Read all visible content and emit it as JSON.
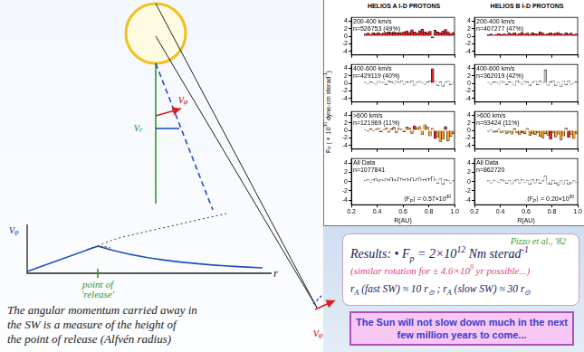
{
  "chart_panel": {
    "column_titles": [
      "HELIOS A I-D PROTONS",
      "HELIOS B I-D PROTONS"
    ],
    "ylabel": [
      "F",
      {
        "sub": "P"
      },
      " (× 10",
      {
        "sup": "30"
      },
      " dyne-cm sterad",
      {
        "sup": "-1"
      },
      ")"
    ]
  },
  "chart_data": [
    {
      "type": "bar",
      "title": "200-400 km/s",
      "subtitle": "n=526753 (49%)",
      "color": "#d8232a",
      "grid": false,
      "tick_labels": "y",
      "bins": [
        0.3,
        0.32,
        0.34,
        0.36,
        0.38,
        0.4,
        0.42,
        0.44,
        0.46,
        0.48,
        0.5,
        0.52,
        0.54,
        0.56,
        0.58,
        0.6,
        0.62,
        0.64,
        0.66,
        0.68,
        0.7,
        0.72,
        0.74,
        0.76,
        0.78,
        0.8,
        0.82,
        0.84,
        0.86,
        0.88,
        0.9,
        0.92,
        0.94,
        0.96,
        0.98,
        1.0
      ],
      "values": [
        0.6,
        0.8,
        0.5,
        0.9,
        0.7,
        1.0,
        0.6,
        0.8,
        1.0,
        1.1,
        1.0,
        1.2,
        0.9,
        0.9,
        1.0,
        1.2,
        1.4,
        1.0,
        1.7,
        1.1,
        0.8,
        1.5,
        1.9,
        1.2,
        1.0,
        1.3,
        -0.4,
        1.6,
        1.1,
        0.9,
        1.4,
        1.8,
        1.2,
        0.7,
        1.0
      ],
      "xlim": [
        0.2,
        1.0
      ],
      "xticks": [
        0.2,
        0.4,
        0.6,
        0.8,
        {
          "value": 1.0,
          "label": "1.0"
        }
      ],
      "ylim": [
        -5,
        5
      ],
      "yticks": [
        -4,
        -2,
        0,
        2,
        4
      ]
    },
    {
      "type": "bar",
      "title": "400-600 km/s",
      "subtitle": "n=429119 (40%)",
      "grid": false,
      "tick_labels": "y",
      "colors": [
        "#ffffff",
        "#ffffff",
        "#ffffff",
        "#ffffff",
        "#ffffff",
        "#ffffff",
        "#ffffff",
        "#ffffff",
        "#ffffff",
        "#ffffff",
        "#ffffff",
        "#ffffff",
        "#ffffff",
        "#ffffff",
        "#ffffff",
        "#ffffff",
        "#ffffff",
        "#ffffff",
        "#ffffff",
        "#ffffff",
        "#ffffff",
        "#ffffff",
        "#ffffff",
        "#ffffff",
        "#ffffff",
        "#ffffff",
        "#d8232a",
        "#ffffff",
        "#ffffff",
        "#ffffff",
        "#ffffff",
        "#ffffff",
        "#ffffff",
        "#ffffff",
        "#ffffff"
      ],
      "bins": [
        0.3,
        0.32,
        0.34,
        0.36,
        0.38,
        0.4,
        0.42,
        0.44,
        0.46,
        0.48,
        0.5,
        0.52,
        0.54,
        0.56,
        0.58,
        0.6,
        0.62,
        0.64,
        0.66,
        0.68,
        0.7,
        0.72,
        0.74,
        0.76,
        0.78,
        0.8,
        0.82,
        0.84,
        0.86,
        0.88,
        0.9,
        0.92,
        0.94,
        0.96,
        0.98,
        1.0
      ],
      "values": [
        0.3,
        -0.2,
        0.4,
        0.2,
        -0.3,
        0.5,
        0.2,
        0.3,
        -0.4,
        0.6,
        0.4,
        -0.2,
        0.5,
        0.3,
        0.7,
        -0.3,
        0.4,
        0.2,
        0.6,
        -0.5,
        0.3,
        0.5,
        0.2,
        -0.3,
        0.4,
        0.6,
        3.9,
        0.5,
        -0.6,
        0.4,
        -0.8,
        0.3,
        0.5,
        -0.4,
        0.2
      ],
      "xlim": [
        0.2,
        1.0
      ],
      "xticks": [
        0.2,
        0.4,
        0.6,
        0.8,
        {
          "value": 1.0,
          "label": "1.0"
        }
      ],
      "ylim": [
        -5,
        5
      ],
      "yticks": [
        -4,
        -2,
        0,
        2,
        4
      ]
    },
    {
      "type": "bar",
      "title": ">600 km/s",
      "subtitle": "n=121969 (11%)",
      "grid": false,
      "tick_labels": "y",
      "colors": [
        "#f2a23a",
        "#f2a23a",
        "#f2a23a",
        "#f2a23a",
        "#f2a23a",
        "#f2a23a",
        "#f2a23a",
        "#f2a23a",
        "#f2a23a",
        "#f2a23a",
        "#f2a23a",
        "#f2a23a",
        "#f2a23a",
        "#f2a23a",
        "#f2a23a",
        "#f2a23a",
        "#f2a23a",
        "#f2a23a",
        "#f2a23a",
        "#d8232a",
        "#f2a23a",
        "#f2a23a",
        "#f2a23a",
        "#f2a23a",
        "#f2a23a",
        "#f2a23a",
        "#f2a23a",
        "#d8232a",
        "#f2a23a",
        "#f2a23a",
        "#f2a23a",
        "#d8232a",
        "#f2a23a",
        "#f2a23a",
        "#f2a23a"
      ],
      "bins": [
        0.3,
        0.32,
        0.34,
        0.36,
        0.38,
        0.4,
        0.42,
        0.44,
        0.46,
        0.48,
        0.5,
        0.52,
        0.54,
        0.56,
        0.58,
        0.6,
        0.62,
        0.64,
        0.66,
        0.68,
        0.7,
        0.72,
        0.74,
        0.76,
        0.78,
        0.8,
        0.82,
        0.84,
        0.86,
        0.88,
        0.9,
        0.92,
        0.94,
        0.96,
        0.98,
        1.0
      ],
      "values": [
        0.2,
        -0.3,
        0.4,
        -0.2,
        0.3,
        0.5,
        -0.4,
        0.2,
        0.6,
        -0.5,
        0.4,
        0.8,
        -0.6,
        0.5,
        0.3,
        -0.4,
        0.9,
        0.6,
        -0.8,
        1.2,
        0.7,
        1.0,
        -1.2,
        1.5,
        0.8,
        -1.5,
        0.5,
        -2.2,
        -1.8,
        -3.0,
        -2.4,
        1.0,
        -2.8,
        -1.6,
        -0.9
      ],
      "xlim": [
        0.2,
        1.0
      ],
      "xticks": [
        0.2,
        0.4,
        0.6,
        0.8,
        {
          "value": 1.0,
          "label": "1.0"
        }
      ],
      "ylim": [
        -5,
        5
      ],
      "yticks": [
        -4,
        -2,
        0,
        2,
        4
      ]
    },
    {
      "type": "bar",
      "title": "All Data",
      "subtitle": "n=1077841",
      "color": "#ffffff",
      "grid": false,
      "annotations": [
        [
          "⟨F",
          {
            "sub": "P"
          },
          "⟩ = 0.57×10",
          {
            "sup": "30"
          }
        ]
      ],
      "xlabel": "R(AU)",
      "bins": [
        0.3,
        0.32,
        0.34,
        0.36,
        0.38,
        0.4,
        0.42,
        0.44,
        0.46,
        0.48,
        0.5,
        0.52,
        0.54,
        0.56,
        0.58,
        0.6,
        0.62,
        0.64,
        0.66,
        0.68,
        0.7,
        0.72,
        0.74,
        0.76,
        0.78,
        0.8,
        0.82,
        0.84,
        0.86,
        0.88,
        0.9,
        0.92,
        0.94,
        0.96,
        0.98,
        1.0
      ],
      "values": [
        0.3,
        0.5,
        -0.2,
        0.4,
        0.6,
        0.2,
        0.5,
        0.3,
        0.7,
        0.4,
        0.8,
        0.5,
        0.3,
        0.9,
        0.6,
        0.4,
        0.7,
        0.5,
        0.8,
        0.3,
        0.6,
        0.9,
        0.5,
        0.4,
        0.7,
        0.6,
        1.1,
        0.5,
        -0.4,
        0.6,
        -0.6,
        0.4,
        0.3,
        -0.3,
        0.2
      ],
      "xlim": [
        0.2,
        1.0
      ],
      "xticks": [
        0.2,
        0.4,
        0.6,
        0.8,
        {
          "value": 1.0,
          "label": "1.0"
        }
      ],
      "ylim": [
        -5,
        5
      ],
      "yticks": [
        -4,
        -2,
        0,
        2,
        4
      ]
    },
    {
      "type": "bar",
      "title": "200-400 km/s",
      "subtitle": "n=407277 (47%)",
      "color": "#d8232a",
      "grid": false,
      "tick_labels": "y",
      "bins": [
        0.3,
        0.32,
        0.34,
        0.36,
        0.38,
        0.4,
        0.42,
        0.44,
        0.46,
        0.48,
        0.5,
        0.52,
        0.54,
        0.56,
        0.58,
        0.6,
        0.62,
        0.64,
        0.66,
        0.68,
        0.7,
        0.72,
        0.74,
        0.76,
        0.78,
        0.8,
        0.82,
        0.84,
        0.86,
        0.88,
        0.9,
        0.92,
        0.94,
        0.96,
        0.98,
        1.0
      ],
      "values": [
        0.4,
        0.6,
        0.3,
        0.5,
        0.7,
        0.4,
        0.6,
        0.5,
        0.8,
        0.6,
        0.9,
        0.5,
        0.7,
        1.0,
        0.6,
        0.8,
        0.5,
        0.9,
        0.7,
        0.6,
        1.1,
        0.8,
        0.5,
        0.7,
        0.9,
        0.6,
        0.8,
        1.0,
        0.7,
        0.5,
        0.9,
        0.6,
        0.8,
        0.4,
        0.6
      ],
      "xlim": [
        0.2,
        1.0
      ],
      "xticks": [
        0.2,
        0.4,
        0.6,
        0.8,
        {
          "value": 1.0,
          "label": "1.0"
        }
      ],
      "ylim": [
        -5,
        5
      ],
      "yticks": [
        -4,
        -2,
        0,
        2,
        4
      ]
    },
    {
      "type": "bar",
      "title": "400-600 km/s",
      "subtitle": "n=362019 (42%)",
      "grid": false,
      "tick_labels": "y",
      "colors": [
        "#ffffff",
        "#ffffff",
        "#ffffff",
        "#ffffff",
        "#ffffff",
        "#ffffff",
        "#ffffff",
        "#ffffff",
        "#ffffff",
        "#ffffff",
        "#ffffff",
        "#ffffff",
        "#ffffff",
        "#ffffff",
        "#ffffff",
        "#ffffff",
        "#ffffff",
        "#ffffff",
        "#ffffff",
        "#ffffff",
        "#ffffff",
        "#ffffff",
        "#bdbdbd",
        "#ffffff",
        "#ffffff",
        "#ffffff",
        "#ffffff",
        "#ffffff",
        "#ffffff",
        "#ffffff",
        "#ffffff",
        "#ffffff",
        "#ffffff",
        "#ffffff",
        "#ffffff"
      ],
      "bins": [
        0.3,
        0.32,
        0.34,
        0.36,
        0.38,
        0.4,
        0.42,
        0.44,
        0.46,
        0.48,
        0.5,
        0.52,
        0.54,
        0.56,
        0.58,
        0.6,
        0.62,
        0.64,
        0.66,
        0.68,
        0.7,
        0.72,
        0.74,
        0.76,
        0.78,
        0.8,
        0.82,
        0.84,
        0.86,
        0.88,
        0.9,
        0.92,
        0.94,
        0.96,
        0.98,
        1.0
      ],
      "values": [
        0.2,
        -0.3,
        0.4,
        0.3,
        -0.2,
        0.5,
        0.3,
        -0.4,
        0.4,
        0.2,
        -0.5,
        0.6,
        0.3,
        -0.3,
        0.5,
        0.4,
        -0.6,
        0.3,
        0.5,
        -0.4,
        0.6,
        0.2,
        3.5,
        -0.5,
        0.4,
        0.7,
        -0.6,
        0.3,
        -0.8,
        0.5,
        -0.4,
        0.6,
        -0.3,
        0.2,
        0.4
      ],
      "xlim": [
        0.2,
        1.0
      ],
      "xticks": [
        0.2,
        0.4,
        0.6,
        0.8,
        {
          "value": 1.0,
          "label": "1.0"
        }
      ],
      "ylim": [
        -5,
        5
      ],
      "yticks": [
        -4,
        -2,
        0,
        2,
        4
      ]
    },
    {
      "type": "bar",
      "title": ">600 km/s",
      "subtitle": "n=93424 (11%)",
      "grid": false,
      "tick_labels": "y",
      "colors": [
        "#f2a23a",
        "#f2a23a",
        "#f2a23a",
        "#f2a23a",
        "#f2a23a",
        "#f2a23a",
        "#f2a23a",
        "#f2a23a",
        "#f2a23a",
        "#f2a23a",
        "#f2a23a",
        "#f2a23a",
        "#f2a23a",
        "#d8232a",
        "#f2a23a",
        "#f2a23a",
        "#f2a23a",
        "#f2a23a",
        "#f2a23a",
        "#f2a23a",
        "#f2a23a",
        "#f2a23a",
        "#f2a23a",
        "#f2a23a",
        "#d8232a",
        "#f2a23a",
        "#f2a23a",
        "#f2a23a",
        "#f2a23a",
        "#f2a23a",
        "#f2a23a",
        "#d8232a",
        "#f2a23a",
        "#f2a23a",
        "#f2a23a"
      ],
      "bins": [
        0.3,
        0.32,
        0.34,
        0.36,
        0.38,
        0.4,
        0.42,
        0.44,
        0.46,
        0.48,
        0.5,
        0.52,
        0.54,
        0.56,
        0.58,
        0.6,
        0.62,
        0.64,
        0.66,
        0.68,
        0.7,
        0.72,
        0.74,
        0.76,
        0.78,
        0.8,
        0.82,
        0.84,
        0.86,
        0.88,
        0.9,
        0.92,
        0.94,
        0.96,
        0.98,
        1.0
      ],
      "values": [
        -0.3,
        0.2,
        -0.5,
        -0.4,
        0.3,
        -0.6,
        -0.2,
        -0.8,
        -0.5,
        -1.0,
        0.4,
        -0.7,
        -1.2,
        -0.6,
        -0.9,
        0.5,
        -1.4,
        -0.8,
        -1.1,
        -0.6,
        -1.6,
        -2.0,
        -0.9,
        -1.3,
        -2.4,
        -0.7,
        -1.8,
        -1.0,
        -2.6,
        -1.5,
        0.6,
        -1.9,
        -1.2,
        -2.2,
        -0.8
      ],
      "xlim": [
        0.2,
        1.0
      ],
      "xticks": [
        0.2,
        0.4,
        0.6,
        0.8,
        {
          "value": 1.0,
          "label": "1.0"
        }
      ],
      "ylim": [
        -5,
        5
      ],
      "yticks": [
        -4,
        -2,
        0,
        2,
        4
      ]
    },
    {
      "type": "bar",
      "title": "All Data",
      "subtitle": "n=862720",
      "color": "#ffffff",
      "grid": false,
      "annotations": [
        [
          "⟨F",
          {
            "sub": "P"
          },
          "⟩ = 0.20×10",
          {
            "sup": "30"
          }
        ]
      ],
      "xlabel": "R(AU)",
      "bins": [
        0.3,
        0.32,
        0.34,
        0.36,
        0.38,
        0.4,
        0.42,
        0.44,
        0.46,
        0.48,
        0.5,
        0.52,
        0.54,
        0.56,
        0.58,
        0.6,
        0.62,
        0.64,
        0.66,
        0.68,
        0.7,
        0.72,
        0.74,
        0.76,
        0.78,
        0.8,
        0.82,
        0.84,
        0.86,
        0.88,
        0.9,
        0.92,
        0.94,
        0.96,
        0.98,
        1.0
      ],
      "values": [
        0.2,
        -0.3,
        0.3,
        0.1,
        -0.2,
        0.4,
        0.2,
        -0.4,
        0.3,
        -0.5,
        0.2,
        0.4,
        -0.3,
        0.5,
        -0.2,
        0.3,
        -0.6,
        0.4,
        -0.3,
        0.5,
        -0.4,
        0.2,
        1.2,
        -0.5,
        -0.6,
        0.3,
        -0.4,
        -0.8,
        0.2,
        -0.5,
        0.3,
        -0.6,
        -0.3,
        0.2,
        -0.2
      ],
      "xlim": [
        0.2,
        1.0
      ],
      "xticks": [
        0.2,
        0.4,
        0.6,
        0.8,
        {
          "value": 1.0,
          "label": "1.0"
        }
      ],
      "ylim": [
        -5,
        5
      ],
      "yticks": [
        -4,
        -2,
        0,
        2,
        4
      ]
    }
  ],
  "sketch": {
    "v_r": "vᵣ",
    "v_phi_near": "vᵩ",
    "v_phi_far": "vᵩ",
    "plot_ylabel": "vᵩ",
    "plot_xlabel": "r",
    "release": [
      "point of",
      "'release'"
    ],
    "caption": [
      "The angular momentum carried away in",
      "the SW is a measure of the height of",
      "the point of release (Alfvén radius)"
    ]
  },
  "results": {
    "citation": "Pizzo et al., '82",
    "lines": [
      [
        "Results: • F",
        {
          "sub": "p"
        },
        " = 2×10",
        {
          "sup": "12"
        },
        " Nm sterad",
        {
          "sup": "-1"
        }
      ],
      [
        "(similar rotation for ± 4.6×10",
        {
          "sup": "9"
        },
        " yr possible...)"
      ],
      [
        "r",
        {
          "sub": "A"
        },
        " (fast SW) ≈ 10 r",
        {
          "sub": "⊙"
        },
        " ;  r",
        {
          "sub": "A"
        },
        " (slow SW) ≈ 30 r",
        {
          "sub": "⊙"
        }
      ]
    ]
  },
  "banner": "The Sun will not slow down much in the next few million years to come..."
}
